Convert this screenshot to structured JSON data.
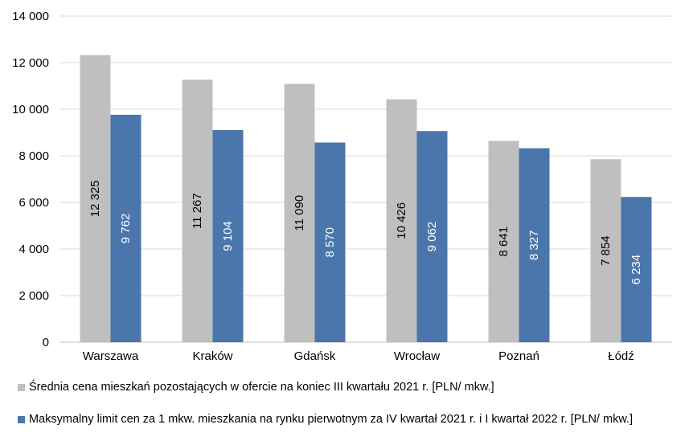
{
  "chart_data": {
    "type": "bar",
    "categories": [
      "Warszawa",
      "Kraków",
      "Gdańsk",
      "Wrocław",
      "Poznań",
      "Łódź"
    ],
    "series": [
      {
        "name": "Średnia cena mieszkań pozostających w ofercie na koniec III kwartału 2021 r. [PLN/ mkw.]",
        "values": [
          12325,
          11267,
          11090,
          10426,
          8641,
          7854
        ],
        "labels": [
          "12 325",
          "11 267",
          "11 090",
          "10 426",
          "8 641",
          "7 854"
        ],
        "color": "#bfbfbf",
        "label_color": "#000000"
      },
      {
        "name": "Maksymalny limit cen za 1 mkw. mieszkania na rynku pierwotnym za IV kwartał 2021 r. i I kwartał 2022 r. [PLN/ mkw.]",
        "values": [
          9762,
          9104,
          8570,
          9062,
          8327,
          6234
        ],
        "labels": [
          "9 762",
          "9 104",
          "8 570",
          "9 062",
          "8 327",
          "6 234"
        ],
        "color": "#4a76ab",
        "label_color": "#ffffff"
      }
    ],
    "ylim": [
      0,
      14000
    ],
    "yticks": [
      0,
      2000,
      4000,
      6000,
      8000,
      10000,
      12000,
      14000
    ],
    "ytick_labels": [
      "0",
      "2 000",
      "4 000",
      "6 000",
      "8 000",
      "10 000",
      "12 000",
      "14 000"
    ],
    "grid": true,
    "legend_position": "bottom",
    "title": "",
    "xlabel": "",
    "ylabel": ""
  }
}
